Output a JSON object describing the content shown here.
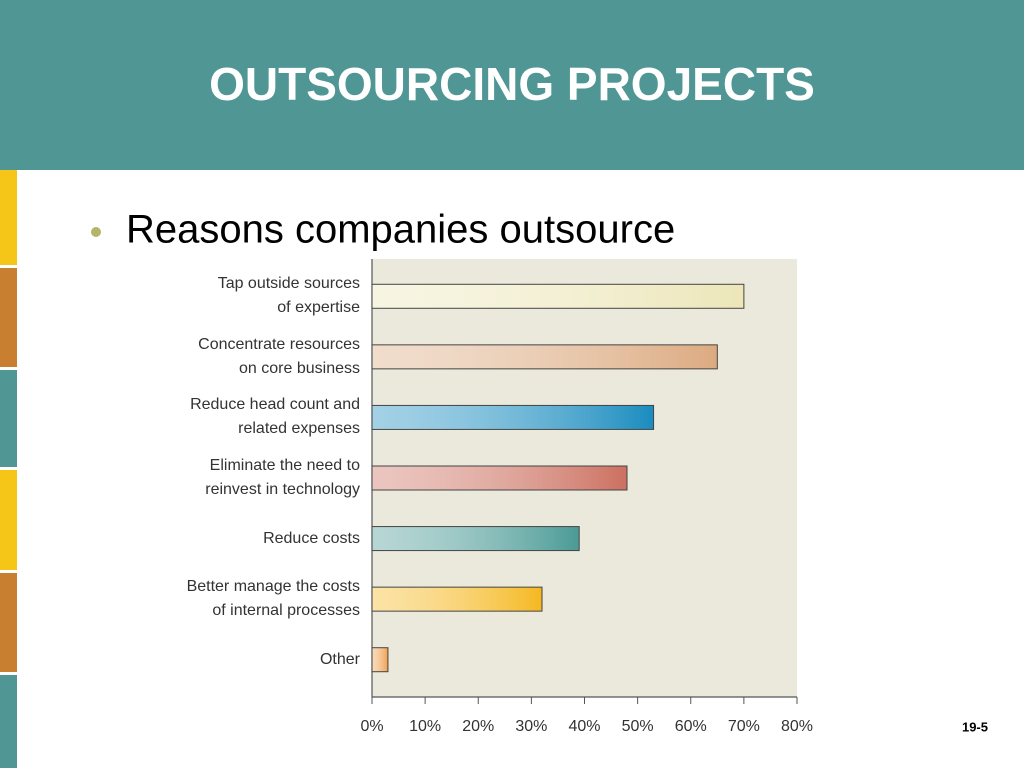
{
  "slide": {
    "title": "OUTSOURCING PROJECTS",
    "bullet": "Reasons companies outsource",
    "page_number": "19-5"
  },
  "chart_data": {
    "type": "hbar",
    "categories": [
      "Tap outside sources\nof expertise",
      "Concentrate resources\non core business",
      "Reduce head count and\nrelated expenses",
      "Eliminate the need to\nreinvest in technology",
      "Reduce costs",
      "Better manage the costs\nof internal processes",
      "Other"
    ],
    "values": [
      70,
      65,
      53,
      48,
      39,
      32,
      3
    ],
    "colors": [
      "#ece6b8",
      "#dcaa80",
      "#1a8cbf",
      "#cc7060",
      "#4a9a96",
      "#f5b820",
      "#f0a050"
    ],
    "xlim": [
      0,
      80
    ],
    "xticks": [
      {
        "value": 0,
        "label": "0%"
      },
      {
        "value": 10,
        "label": "10%"
      },
      {
        "value": 20,
        "label": "20%"
      },
      {
        "value": 30,
        "label": "30%"
      },
      {
        "value": 40,
        "label": "40%"
      },
      {
        "value": 50,
        "label": "50%"
      },
      {
        "value": 60,
        "label": "60%"
      },
      {
        "value": 70,
        "label": "70%"
      },
      {
        "value": 80,
        "label": "80%"
      }
    ]
  }
}
